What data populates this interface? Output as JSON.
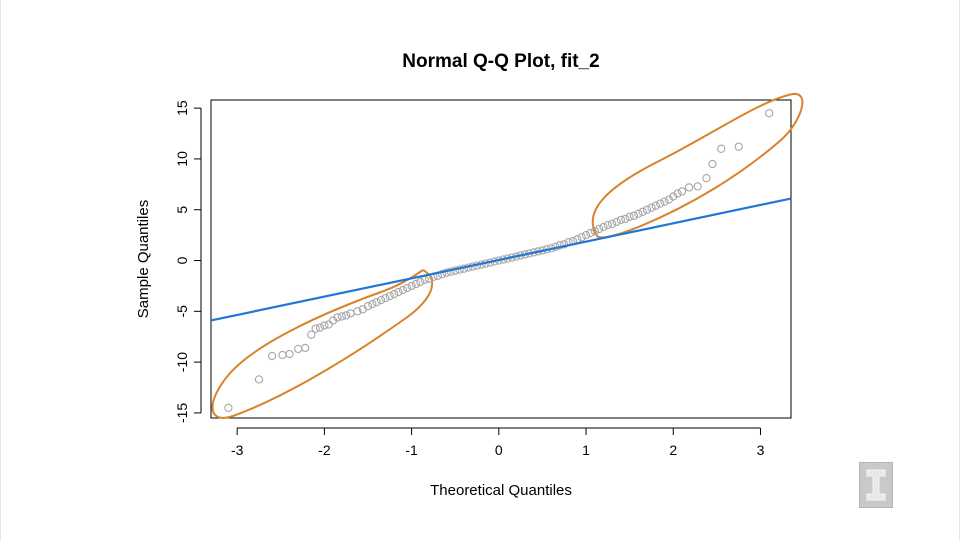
{
  "chart_data": {
    "type": "scatter",
    "title": "Normal Q-Q Plot, fit_2",
    "xlabel": "Theoretical Quantiles",
    "ylabel": "Sample Quantiles",
    "xlim": [
      -3.3,
      3.35
    ],
    "ylim": [
      -15.5,
      15.8
    ],
    "xticks": [
      -3,
      -2,
      -1,
      0,
      1,
      2,
      3
    ],
    "yticks": [
      -15,
      -10,
      -5,
      0,
      5,
      10,
      15
    ],
    "grid": false,
    "series": [
      {
        "type": "scatter",
        "color": "#a6a6a6",
        "points": [
          [
            -3.1,
            -14.5
          ],
          [
            -2.75,
            -11.7
          ],
          [
            -2.6,
            -9.4
          ],
          [
            -2.48,
            -9.3
          ],
          [
            -2.4,
            -9.2
          ],
          [
            -2.3,
            -8.7
          ],
          [
            -2.22,
            -8.6
          ],
          [
            -2.15,
            -7.3
          ],
          [
            -2.1,
            -6.7
          ],
          [
            -2.05,
            -6.6
          ],
          [
            -2.0,
            -6.4
          ],
          [
            -1.95,
            -6.3
          ],
          [
            -1.9,
            -5.9
          ],
          [
            -1.85,
            -5.6
          ],
          [
            -1.8,
            -5.5
          ],
          [
            -1.75,
            -5.4
          ],
          [
            -1.7,
            -5.2
          ],
          [
            -1.62,
            -5.0
          ],
          [
            -1.56,
            -4.8
          ],
          [
            -1.5,
            -4.5
          ],
          [
            -1.45,
            -4.3
          ],
          [
            -1.4,
            -4.1
          ],
          [
            -1.35,
            -3.9
          ],
          [
            -1.3,
            -3.7
          ],
          [
            -1.25,
            -3.5
          ],
          [
            -1.2,
            -3.3
          ],
          [
            -1.15,
            -3.1
          ],
          [
            -1.1,
            -2.9
          ],
          [
            -1.05,
            -2.7
          ],
          [
            -1.0,
            -2.5
          ],
          [
            -0.95,
            -2.3
          ],
          [
            -0.9,
            -2.1
          ],
          [
            -0.85,
            -1.9
          ],
          [
            -0.8,
            -1.8
          ],
          [
            -0.75,
            -1.6
          ],
          [
            -0.7,
            -1.5
          ],
          [
            -0.65,
            -1.35
          ],
          [
            -0.6,
            -1.2
          ],
          [
            -0.55,
            -1.1
          ],
          [
            -0.5,
            -1.0
          ],
          [
            -0.45,
            -0.9
          ],
          [
            -0.4,
            -0.8
          ],
          [
            -0.35,
            -0.7
          ],
          [
            -0.3,
            -0.6
          ],
          [
            -0.25,
            -0.5
          ],
          [
            -0.2,
            -0.4
          ],
          [
            -0.15,
            -0.3
          ],
          [
            -0.1,
            -0.2
          ],
          [
            -0.05,
            -0.1
          ],
          [
            0.0,
            0.0
          ],
          [
            0.05,
            0.1
          ],
          [
            0.1,
            0.2
          ],
          [
            0.15,
            0.3
          ],
          [
            0.2,
            0.4
          ],
          [
            0.25,
            0.5
          ],
          [
            0.3,
            0.6
          ],
          [
            0.35,
            0.7
          ],
          [
            0.4,
            0.8
          ],
          [
            0.45,
            0.9
          ],
          [
            0.5,
            1.0
          ],
          [
            0.55,
            1.1
          ],
          [
            0.6,
            1.2
          ],
          [
            0.65,
            1.35
          ],
          [
            0.7,
            1.5
          ],
          [
            0.75,
            1.6
          ],
          [
            0.8,
            1.8
          ],
          [
            0.85,
            1.9
          ],
          [
            0.9,
            2.1
          ],
          [
            0.95,
            2.3
          ],
          [
            1.0,
            2.5
          ],
          [
            1.05,
            2.7
          ],
          [
            1.1,
            2.9
          ],
          [
            1.15,
            3.1
          ],
          [
            1.2,
            3.3
          ],
          [
            1.25,
            3.5
          ],
          [
            1.3,
            3.6
          ],
          [
            1.35,
            3.8
          ],
          [
            1.4,
            4.0
          ],
          [
            1.45,
            4.1
          ],
          [
            1.5,
            4.3
          ],
          [
            1.55,
            4.4
          ],
          [
            1.6,
            4.6
          ],
          [
            1.65,
            4.8
          ],
          [
            1.7,
            5.0
          ],
          [
            1.75,
            5.2
          ],
          [
            1.8,
            5.4
          ],
          [
            1.85,
            5.6
          ],
          [
            1.9,
            5.8
          ],
          [
            1.95,
            6.0
          ],
          [
            2.0,
            6.3
          ],
          [
            2.05,
            6.6
          ],
          [
            2.1,
            6.8
          ],
          [
            2.18,
            7.2
          ],
          [
            2.28,
            7.3
          ],
          [
            2.38,
            8.1
          ],
          [
            2.45,
            9.5
          ],
          [
            2.55,
            11.0
          ],
          [
            2.75,
            11.2
          ],
          [
            3.1,
            14.5
          ]
        ]
      },
      {
        "type": "line",
        "name": "",
        "color": "#1f78d6",
        "from": [
          -3.3,
          -5.9
        ],
        "to": [
          3.35,
          6.1
        ]
      }
    ],
    "annotations": [
      {
        "type": "ellipse",
        "color": "#d9822b",
        "region": "lower-left tail"
      },
      {
        "type": "ellipse",
        "color": "#d9822b",
        "region": "upper-right tail"
      }
    ]
  },
  "watermark": {
    "icon": "university-logo-icon",
    "text": "I"
  }
}
